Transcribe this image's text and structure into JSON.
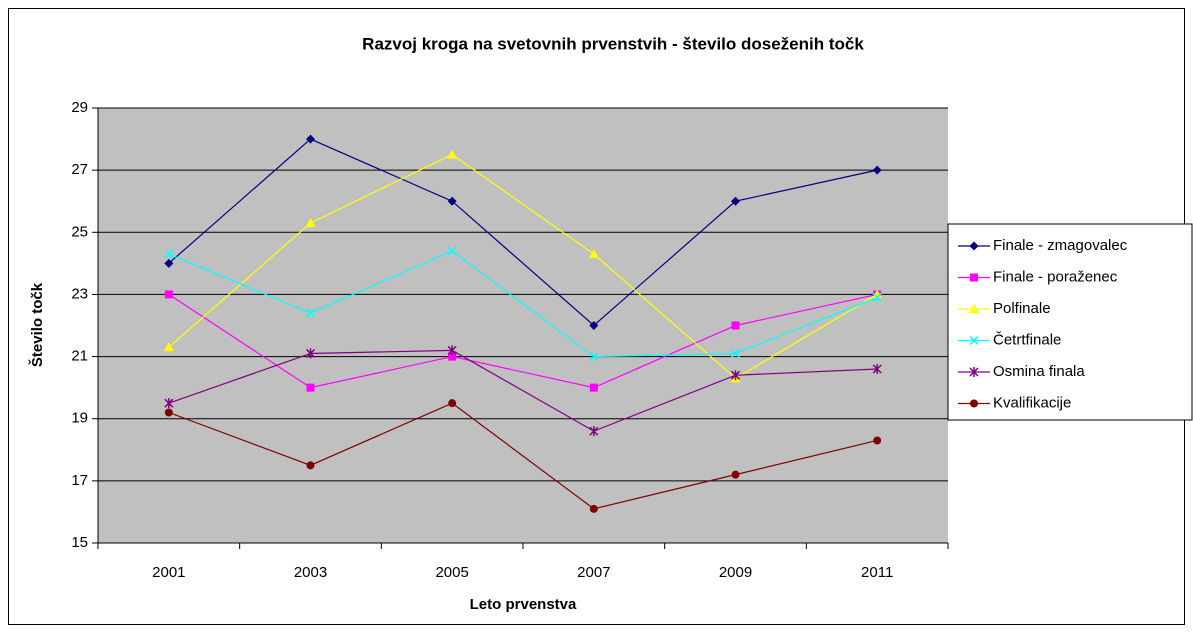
{
  "chart_data": {
    "type": "line",
    "title": "Razvoj kroga na svetovnih prvenstvih - število doseženih točk",
    "x_label": "Leto prvenstva",
    "y_label": "Število točk",
    "categories": [
      "2001",
      "2003",
      "2005",
      "2007",
      "2009",
      "2011"
    ],
    "ylim": [
      15,
      29
    ],
    "yticks": [
      15,
      17,
      19,
      21,
      23,
      25,
      27,
      29
    ],
    "grid": true,
    "plot_background": "#c0c0c0",
    "legend": "right",
    "series": [
      {
        "name": "Finale  - zmagovalec",
        "color": "#000080",
        "marker": "diamond",
        "values": [
          24,
          28,
          26,
          22,
          26,
          27
        ]
      },
      {
        "name": "Finale - poraženec",
        "color": "#ff00ff",
        "marker": "square",
        "values": [
          23,
          20,
          21,
          20,
          22,
          23
        ]
      },
      {
        "name": "Polfinale",
        "color": "#ffff00",
        "marker": "triangle",
        "values": [
          21.3,
          25.3,
          27.5,
          24.3,
          20.3,
          23
        ]
      },
      {
        "name": "Četrtfinale",
        "color": "#00ffff",
        "marker": "x",
        "values": [
          24.3,
          22.4,
          24.4,
          21,
          21.1,
          22.9
        ]
      },
      {
        "name": "Osmina finala",
        "color": "#800080",
        "marker": "star",
        "values": [
          19.5,
          21.1,
          21.2,
          18.6,
          20.4,
          20.6
        ]
      },
      {
        "name": "Kvalifikacije",
        "color": "#800000",
        "marker": "circle",
        "values": [
          19.2,
          17.5,
          19.5,
          16.1,
          17.2,
          18.3
        ]
      }
    ]
  }
}
